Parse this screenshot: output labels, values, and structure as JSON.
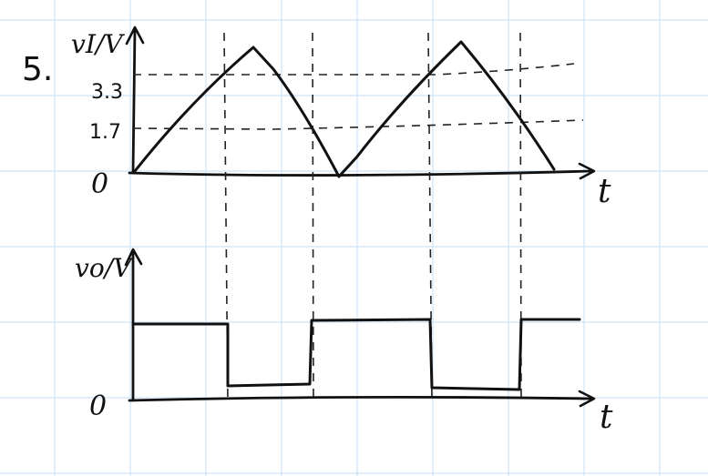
{
  "problem_number": "5.",
  "top_plot": {
    "y_label": "vI/V",
    "x_label": "t",
    "origin_label": "0",
    "levels": [
      {
        "label": "3.3",
        "value": 3.3
      },
      {
        "label": "1.7",
        "value": 1.7
      }
    ],
    "peak_value": 4.2,
    "waveform": "triangle",
    "cycles": 2
  },
  "bottom_plot": {
    "y_label": "vo/V",
    "x_label": "t",
    "origin_label": "0",
    "waveform": "square"
  },
  "colors": {
    "ink": "#111111",
    "grid": "#cfe3f5"
  }
}
